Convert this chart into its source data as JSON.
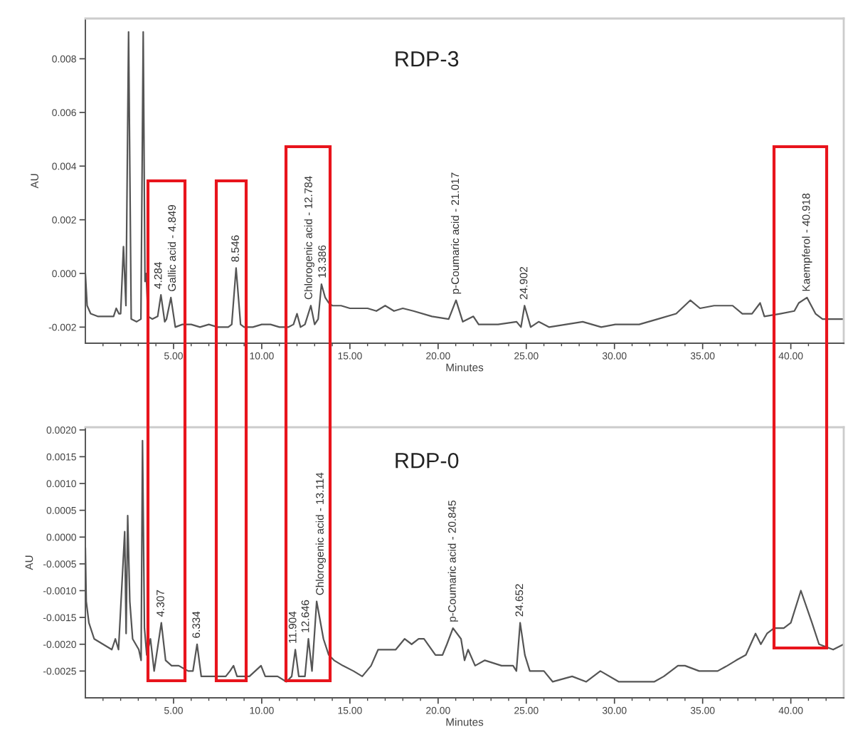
{
  "chart_data": [
    {
      "type": "line",
      "title": "RDP-3",
      "xlabel": "Minutes",
      "ylabel": "AU",
      "color": "#555555",
      "x": [
        0,
        0.1,
        0.3,
        0.7,
        1.2,
        1.6,
        1.75,
        1.9,
        2.0,
        2.16,
        2.3,
        2.45,
        2.6,
        2.9,
        3.15,
        3.28,
        3.38,
        3.45,
        3.55,
        3.8,
        4.1,
        4.284,
        4.5,
        4.6,
        4.849,
        5.1,
        5.5,
        6.0,
        6.5,
        7.0,
        7.5,
        8.1,
        8.3,
        8.546,
        8.8,
        9.0,
        9.5,
        10.0,
        10.5,
        11.0,
        11.5,
        11.8,
        12.0,
        12.2,
        12.45,
        12.784,
        13.0,
        13.2,
        13.386,
        13.6,
        13.8,
        14.0,
        14.5,
        15.0,
        15.5,
        16.0,
        16.5,
        17.0,
        17.5,
        18.0,
        18.6,
        19.65,
        20.6,
        21.017,
        21.4,
        22.0,
        22.3,
        23.4,
        24.45,
        24.7,
        24.902,
        25.25,
        25.7,
        26.3,
        28.2,
        29.25,
        30.05,
        31.4,
        32.45,
        33.5,
        34.3,
        34.85,
        35.65,
        36.7,
        37.25,
        37.8,
        38.26,
        38.5,
        39.4,
        40.2,
        40.45,
        40.918,
        41.4,
        41.8,
        43.0
      ],
      "values": [
        0.0,
        -0.0012,
        -0.0015,
        -0.0016,
        -0.0016,
        -0.0016,
        -0.0013,
        -0.0015,
        -0.0015,
        0.001,
        -0.0012,
        0.009,
        -0.0017,
        -0.0018,
        -0.0017,
        0.009,
        -0.0003,
        0.0,
        -0.0016,
        -0.0017,
        -0.0016,
        -0.0008,
        -0.0018,
        -0.0017,
        -0.0009,
        -0.002,
        -0.0019,
        -0.0019,
        -0.002,
        -0.0019,
        -0.002,
        -0.002,
        -0.0019,
        0.0002,
        -0.0019,
        -0.002,
        -0.002,
        -0.0019,
        -0.0019,
        -0.002,
        -0.002,
        -0.0019,
        -0.0015,
        -0.002,
        -0.0019,
        -0.0012,
        -0.0019,
        -0.0017,
        -0.0004,
        -0.0009,
        -0.0011,
        -0.0012,
        -0.0012,
        -0.0013,
        -0.0013,
        -0.0013,
        -0.0014,
        -0.0012,
        -0.0014,
        -0.0013,
        -0.0014,
        -0.0016,
        -0.0017,
        -0.001,
        -0.0018,
        -0.0016,
        -0.0019,
        -0.0019,
        -0.0018,
        -0.002,
        -0.0012,
        -0.002,
        -0.0018,
        -0.002,
        -0.0018,
        -0.002,
        -0.0019,
        -0.0019,
        -0.0017,
        -0.0015,
        -0.001,
        -0.0013,
        -0.0012,
        -0.0012,
        -0.0015,
        -0.0015,
        -0.0011,
        -0.0016,
        -0.0015,
        -0.0014,
        -0.0011,
        -0.0009,
        -0.0015,
        -0.0017,
        -0.0017
      ],
      "xlim": [
        0,
        43
      ],
      "xticks": [
        {
          "value": 1,
          "label": null
        },
        {
          "value": 2,
          "label": null
        },
        {
          "value": 3,
          "label": null
        },
        {
          "value": 4,
          "label": null
        },
        {
          "value": 5,
          "label": "5.00"
        },
        {
          "value": 6,
          "label": null
        },
        {
          "value": 7,
          "label": null
        },
        {
          "value": 8,
          "label": null
        },
        {
          "value": 9,
          "label": null
        },
        {
          "value": 10,
          "label": "10.00"
        },
        {
          "value": 11,
          "label": null
        },
        {
          "value": 12,
          "label": null
        },
        {
          "value": 13,
          "label": null
        },
        {
          "value": 14,
          "label": null
        },
        {
          "value": 15,
          "label": "15.00"
        },
        {
          "value": 16,
          "label": null
        },
        {
          "value": 17,
          "label": null
        },
        {
          "value": 18,
          "label": null
        },
        {
          "value": 19,
          "label": null
        },
        {
          "value": 20,
          "label": "20.00"
        },
        {
          "value": 21,
          "label": null
        },
        {
          "value": 22,
          "label": null
        },
        {
          "value": 23,
          "label": null
        },
        {
          "value": 24,
          "label": null
        },
        {
          "value": 25,
          "label": "25.00"
        },
        {
          "value": 26,
          "label": null
        },
        {
          "value": 27,
          "label": null
        },
        {
          "value": 28,
          "label": null
        },
        {
          "value": 29,
          "label": null
        },
        {
          "value": 30,
          "label": "30.00"
        },
        {
          "value": 31,
          "label": null
        },
        {
          "value": 32,
          "label": null
        },
        {
          "value": 33,
          "label": null
        },
        {
          "value": 34,
          "label": null
        },
        {
          "value": 35,
          "label": "35.00"
        },
        {
          "value": 36,
          "label": null
        },
        {
          "value": 37,
          "label": null
        },
        {
          "value": 38,
          "label": null
        },
        {
          "value": 39,
          "label": null
        },
        {
          "value": 40,
          "label": "40.00"
        },
        {
          "value": 41,
          "label": null
        },
        {
          "value": 42,
          "label": null
        }
      ],
      "ylim": [
        -0.0026,
        0.0095
      ],
      "yticks": [
        -0.002,
        {
          "value": 0,
          "label": "0.000"
        },
        0.002,
        0.004,
        0.006,
        0.008
      ],
      "annotations": [
        {
          "text": "4.284",
          "x": 4.284,
          "y": -0.0008
        },
        {
          "text": "Gallic acid - 4.849",
          "x": 4.849,
          "y": -0.0009
        },
        {
          "text": "8.546",
          "x": 8.546,
          "y": 0.0002
        },
        {
          "text": "Chlorogenic acid - 12.784",
          "x": 12.784,
          "y": -0.0012
        },
        {
          "text": "13.386",
          "x": 13.386,
          "y": -0.0004
        },
        {
          "text": "p-Coumaric acid - 21.017",
          "x": 21.017,
          "y": -0.001
        },
        {
          "text": "24.902",
          "x": 24.902,
          "y": -0.0012
        },
        {
          "text": "Kaempferol - 40.918",
          "x": 40.918,
          "y": -0.0009
        }
      ]
    },
    {
      "type": "line",
      "title": "RDP-0",
      "xlabel": "Minutes",
      "ylabel": "AU",
      "color": "#555555",
      "x": [
        0,
        0.05,
        0.2,
        0.5,
        1.0,
        1.5,
        1.7,
        1.88,
        2.23,
        2.31,
        2.4,
        2.52,
        2.68,
        3.03,
        3.16,
        3.24,
        3.35,
        3.48,
        3.69,
        3.9,
        4.307,
        4.55,
        4.89,
        5.29,
        5.83,
        6.1,
        6.334,
        6.57,
        7.16,
        7.96,
        8.2,
        8.4,
        8.6,
        9.3,
        9.96,
        10.2,
        10.9,
        11.4,
        11.7,
        11.904,
        12.1,
        12.45,
        12.646,
        12.85,
        13.114,
        13.5,
        13.8,
        14.1,
        14.6,
        15.2,
        15.7,
        16.2,
        16.6,
        17.0,
        17.6,
        18.1,
        18.5,
        18.9,
        19.2,
        19.85,
        20.25,
        20.5,
        20.845,
        21.3,
        21.5,
        21.7,
        22.1,
        22.65,
        23.6,
        24.25,
        24.44,
        24.652,
        24.92,
        25.2,
        26.0,
        26.5,
        27.6,
        28.4,
        29.2,
        30.25,
        31.3,
        32.25,
        32.8,
        33.6,
        34.0,
        34.8,
        35.85,
        36.4,
        36.9,
        37.45,
        38.0,
        38.3,
        38.65,
        39.05,
        39.6,
        40.0,
        40.57,
        41.2,
        41.6,
        42.4,
        43.0
      ],
      "values": [
        -0.0002,
        -0.0012,
        -0.0016,
        -0.0019,
        -0.002,
        -0.0021,
        -0.0019,
        -0.0021,
        0.0001,
        -0.0018,
        0.0004,
        -0.0012,
        -0.0019,
        -0.0021,
        -0.0023,
        0.0018,
        -0.0017,
        -0.0022,
        -0.0019,
        -0.0025,
        -0.0016,
        -0.0023,
        -0.0024,
        -0.0024,
        -0.0025,
        -0.0025,
        -0.002,
        -0.0026,
        -0.0026,
        -0.0026,
        -0.0025,
        -0.0024,
        -0.0026,
        -0.0026,
        -0.0024,
        -0.0026,
        -0.0026,
        -0.0027,
        -0.0026,
        -0.0021,
        -0.0026,
        -0.0026,
        -0.0019,
        -0.0025,
        -0.0012,
        -0.0019,
        -0.0022,
        -0.0023,
        -0.0024,
        -0.0025,
        -0.0026,
        -0.0024,
        -0.0021,
        -0.0021,
        -0.0021,
        -0.0019,
        -0.002,
        -0.0019,
        -0.0019,
        -0.0022,
        -0.0022,
        -0.002,
        -0.0017,
        -0.0019,
        -0.0023,
        -0.0021,
        -0.0024,
        -0.0023,
        -0.0024,
        -0.0024,
        -0.0025,
        -0.0016,
        -0.0022,
        -0.0025,
        -0.0025,
        -0.0027,
        -0.0026,
        -0.0027,
        -0.0025,
        -0.0027,
        -0.0027,
        -0.0027,
        -0.0026,
        -0.0024,
        -0.0024,
        -0.0025,
        -0.0025,
        -0.0024,
        -0.0023,
        -0.0022,
        -0.0018,
        -0.002,
        -0.0018,
        -0.0017,
        -0.0017,
        -0.0016,
        -0.001,
        -0.0016,
        -0.002,
        -0.0021,
        -0.002
      ],
      "xlim": [
        0,
        43
      ],
      "xticks": [
        {
          "value": 1,
          "label": null
        },
        {
          "value": 2,
          "label": null
        },
        {
          "value": 3,
          "label": null
        },
        {
          "value": 4,
          "label": null
        },
        {
          "value": 5,
          "label": "5.00"
        },
        {
          "value": 6,
          "label": null
        },
        {
          "value": 7,
          "label": null
        },
        {
          "value": 8,
          "label": null
        },
        {
          "value": 9,
          "label": null
        },
        {
          "value": 10,
          "label": "10.00"
        },
        {
          "value": 11,
          "label": null
        },
        {
          "value": 12,
          "label": null
        },
        {
          "value": 13,
          "label": null
        },
        {
          "value": 14,
          "label": null
        },
        {
          "value": 15,
          "label": "15.00"
        },
        {
          "value": 16,
          "label": null
        },
        {
          "value": 17,
          "label": null
        },
        {
          "value": 18,
          "label": null
        },
        {
          "value": 19,
          "label": null
        },
        {
          "value": 20,
          "label": "20.00"
        },
        {
          "value": 21,
          "label": null
        },
        {
          "value": 22,
          "label": null
        },
        {
          "value": 23,
          "label": null
        },
        {
          "value": 24,
          "label": null
        },
        {
          "value": 25,
          "label": "25.00"
        },
        {
          "value": 26,
          "label": null
        },
        {
          "value": 27,
          "label": null
        },
        {
          "value": 28,
          "label": null
        },
        {
          "value": 29,
          "label": null
        },
        {
          "value": 30,
          "label": "30.00"
        },
        {
          "value": 31,
          "label": null
        },
        {
          "value": 32,
          "label": null
        },
        {
          "value": 33,
          "label": null
        },
        {
          "value": 34,
          "label": null
        },
        {
          "value": 35,
          "label": "35.00"
        },
        {
          "value": 36,
          "label": null
        },
        {
          "value": 37,
          "label": null
        },
        {
          "value": 38,
          "label": null
        },
        {
          "value": 39,
          "label": null
        },
        {
          "value": 40,
          "label": "40.00"
        },
        {
          "value": 41,
          "label": null
        },
        {
          "value": 42,
          "label": null
        }
      ],
      "ylim": [
        -0.003,
        0.00205
      ],
      "yticks": [
        -0.0025,
        {
          "value": -0.002,
          "label": "-0.0020"
        },
        -0.0015,
        {
          "value": -0.001,
          "label": "-0.0010"
        },
        -0.0005,
        {
          "value": 0,
          "label": "0.0000"
        },
        0.0005,
        {
          "value": 0.001,
          "label": "0.0010"
        },
        0.0015,
        {
          "value": 0.002,
          "label": "0.0020"
        }
      ],
      "annotations": [
        {
          "text": "4.307",
          "x": 4.307,
          "y": -0.0016
        },
        {
          "text": "6.334",
          "x": 6.334,
          "y": -0.002
        },
        {
          "text": "11.904",
          "x": 11.904,
          "y": -0.0021
        },
        {
          "text": "12.646",
          "x": 12.646,
          "y": -0.0019
        },
        {
          "text": "Chlorogenic acid - 13.114",
          "x": 13.114,
          "y": -0.0012
        },
        {
          "text": "p-Coumaric acid - 20.845",
          "x": 20.845,
          "y": -0.0017
        },
        {
          "text": "24.652",
          "x": 24.652,
          "y": -0.0016
        }
      ]
    }
  ]
}
